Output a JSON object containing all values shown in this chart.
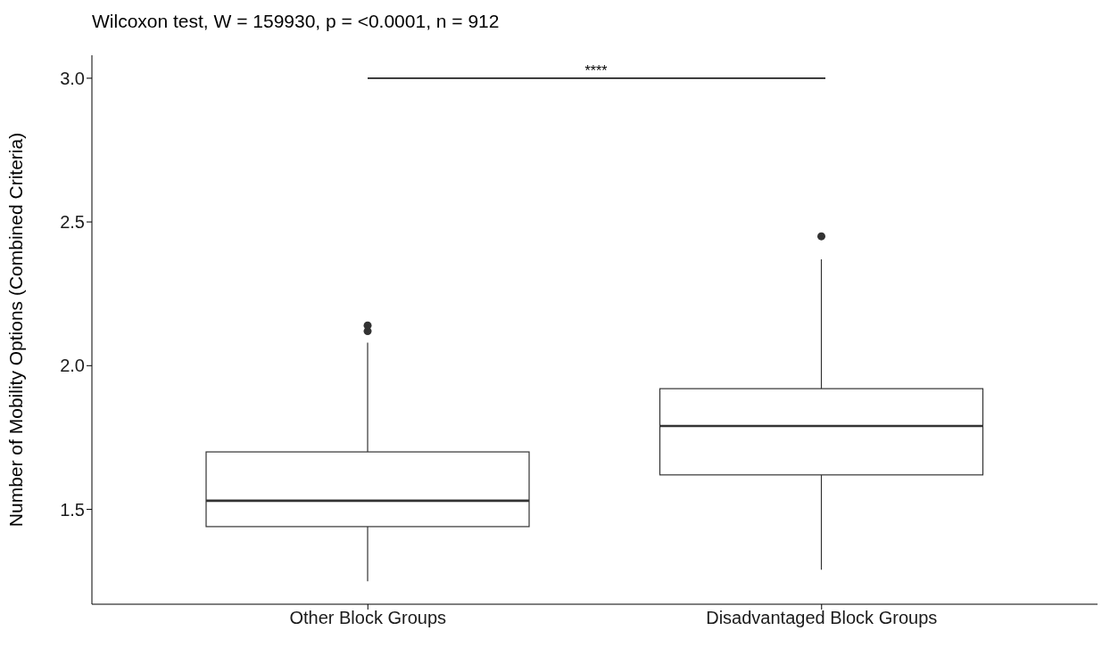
{
  "chart_data": {
    "type": "box",
    "title": "Wilcoxon test, W = 159930, p = <0.0001, n = 912",
    "ylabel": "Number of Mobility Options (Combined Criteria)",
    "categories": [
      "Other Block Groups",
      "Disadvantaged Block Groups"
    ],
    "boxes": [
      {
        "low": 1.25,
        "q1": 1.44,
        "median": 1.53,
        "q3": 1.7,
        "high": 2.08,
        "outliers": [
          2.12,
          2.14
        ]
      },
      {
        "low": 1.29,
        "q1": 1.62,
        "median": 1.79,
        "q3": 1.92,
        "high": 2.37,
        "outliers": [
          2.45
        ]
      }
    ],
    "ylim": [
      1.17,
      3.08
    ],
    "yticks": [
      1.5,
      {
        "value": 2,
        "label": "2.0"
      },
      2.5,
      {
        "value": 3,
        "label": "3.0"
      }
    ],
    "annotations": [
      "****"
    ]
  }
}
